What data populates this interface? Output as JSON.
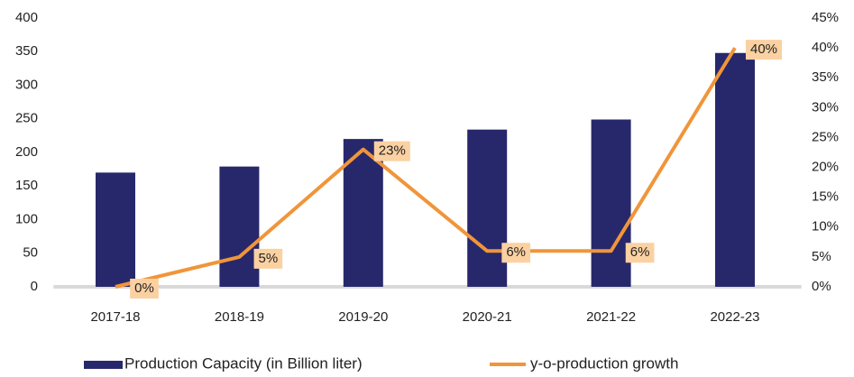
{
  "chart_data": {
    "type": "bar",
    "categories": [
      "2017-18",
      "2018-19",
      "2019-20",
      "2020-21",
      "2021-22",
      "2022-23"
    ],
    "series": [
      {
        "name": "Production Capacity (in Billion liter)",
        "type": "bar",
        "color": "#27286b",
        "values": [
          170,
          179,
          220,
          234,
          249,
          348
        ]
      },
      {
        "name": "y-o-production growth",
        "type": "line",
        "axis": "y2",
        "color": "#f0953a",
        "values": [
          0,
          5,
          23,
          6,
          6,
          40
        ],
        "value_labels": [
          "0%",
          "5%",
          "23%",
          "6%",
          "6%",
          "40%"
        ],
        "label_color": "#fbd1a2"
      }
    ],
    "ylim": [
      0,
      400
    ],
    "yticks": [
      0,
      50,
      100,
      150,
      200,
      250,
      300,
      350,
      400
    ],
    "y2lim": [
      0,
      45
    ],
    "y2ticks": [
      {
        "value": 0,
        "label": "0%"
      },
      {
        "value": 5,
        "label": "5%"
      },
      {
        "value": 10,
        "label": "10%"
      },
      {
        "value": 15,
        "label": "15%"
      },
      {
        "value": 20,
        "label": "20%"
      },
      {
        "value": 25,
        "label": "25%"
      },
      {
        "value": 30,
        "label": "30%"
      },
      {
        "value": 35,
        "label": "35%"
      },
      {
        "value": 40,
        "label": "40%"
      },
      {
        "value": 45,
        "label": "45%"
      }
    ],
    "grid": false,
    "legend": "bottom"
  }
}
